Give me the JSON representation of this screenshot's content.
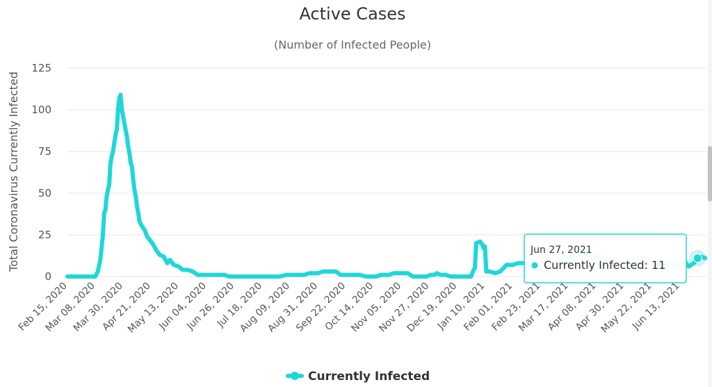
{
  "chart_data": {
    "type": "line",
    "title": "Active Cases",
    "subtitle": "(Number of Infected People)",
    "ylabel": "Total Coronavirus Currently Infected",
    "xlabel": "",
    "ylim": [
      0,
      125
    ],
    "yticks": [
      "0",
      "25",
      "50",
      "75",
      "100",
      "125"
    ],
    "grid": true,
    "legend_position": "bottom",
    "colors": {
      "series": "#1fd7d7",
      "grid": "#e6e6e6",
      "tooltip_border": "#1fd7d7"
    },
    "x_start": "2020-02-15",
    "x_end": "2021-07-04",
    "x_tick_labels": [
      "Feb 15, 2020",
      "Mar 08, 2020",
      "Mar 30, 2020",
      "Apr 21, 2020",
      "May 13, 2020",
      "Jun 04, 2020",
      "Jun 26, 2020",
      "Jul 18, 2020",
      "Aug 09, 2020",
      "Aug 31, 2020",
      "Sep 22, 2020",
      "Oct 14, 2020",
      "Nov 05, 2020",
      "Nov 27, 2020",
      "Dec 19, 2020",
      "Jan 10, 2021",
      "Feb 01, 2021",
      "Feb 23, 2021",
      "Mar 17, 2021",
      "Apr 08, 2021",
      "Apr 30, 2021",
      "May 22, 2021",
      "Jun 13, 2021"
    ],
    "series": [
      {
        "name": "Currently Infected",
        "points": [
          [
            "2020-02-15",
            0
          ],
          [
            "2020-03-08",
            0
          ],
          [
            "2020-03-10",
            3
          ],
          [
            "2020-03-12",
            10
          ],
          [
            "2020-03-14",
            25
          ],
          [
            "2020-03-15",
            38
          ],
          [
            "2020-03-16",
            40
          ],
          [
            "2020-03-17",
            48
          ],
          [
            "2020-03-18",
            52
          ],
          [
            "2020-03-19",
            55
          ],
          [
            "2020-03-20",
            68
          ],
          [
            "2020-03-21",
            72
          ],
          [
            "2020-03-22",
            75
          ],
          [
            "2020-03-23",
            80
          ],
          [
            "2020-03-24",
            85
          ],
          [
            "2020-03-25",
            88
          ],
          [
            "2020-03-26",
            100
          ],
          [
            "2020-03-27",
            107
          ],
          [
            "2020-03-28",
            109
          ],
          [
            "2020-03-29",
            100
          ],
          [
            "2020-03-30",
            96
          ],
          [
            "2020-03-31",
            92
          ],
          [
            "2020-04-01",
            88
          ],
          [
            "2020-04-02",
            84
          ],
          [
            "2020-04-03",
            78
          ],
          [
            "2020-04-04",
            74
          ],
          [
            "2020-04-05",
            68
          ],
          [
            "2020-04-06",
            66
          ],
          [
            "2020-04-07",
            58
          ],
          [
            "2020-04-08",
            52
          ],
          [
            "2020-04-09",
            48
          ],
          [
            "2020-04-10",
            42
          ],
          [
            "2020-04-11",
            38
          ],
          [
            "2020-04-12",
            33
          ],
          [
            "2020-04-14",
            30
          ],
          [
            "2020-04-16",
            28
          ],
          [
            "2020-04-18",
            24
          ],
          [
            "2020-04-21",
            21
          ],
          [
            "2020-04-23",
            19
          ],
          [
            "2020-04-25",
            16
          ],
          [
            "2020-04-28",
            13
          ],
          [
            "2020-05-01",
            12
          ],
          [
            "2020-05-04",
            8
          ],
          [
            "2020-05-06",
            10
          ],
          [
            "2020-05-09",
            7
          ],
          [
            "2020-05-13",
            6
          ],
          [
            "2020-05-16",
            4
          ],
          [
            "2020-05-20",
            4
          ],
          [
            "2020-05-24",
            3
          ],
          [
            "2020-05-28",
            1
          ],
          [
            "2020-06-04",
            1
          ],
          [
            "2020-06-18",
            1
          ],
          [
            "2020-06-22",
            0
          ],
          [
            "2020-08-01",
            0
          ],
          [
            "2020-08-06",
            1
          ],
          [
            "2020-08-20",
            1
          ],
          [
            "2020-08-24",
            2
          ],
          [
            "2020-08-31",
            2
          ],
          [
            "2020-09-04",
            3
          ],
          [
            "2020-09-14",
            3
          ],
          [
            "2020-09-18",
            1
          ],
          [
            "2020-10-03",
            1
          ],
          [
            "2020-10-08",
            0
          ],
          [
            "2020-10-16",
            0
          ],
          [
            "2020-10-20",
            1
          ],
          [
            "2020-10-26",
            1
          ],
          [
            "2020-10-30",
            2
          ],
          [
            "2020-11-10",
            2
          ],
          [
            "2020-11-14",
            0
          ],
          [
            "2020-11-25",
            0
          ],
          [
            "2020-11-28",
            1
          ],
          [
            "2020-12-01",
            1
          ],
          [
            "2020-12-03",
            2
          ],
          [
            "2020-12-06",
            1
          ],
          [
            "2020-12-10",
            1
          ],
          [
            "2020-12-14",
            0
          ],
          [
            "2020-12-30",
            0
          ],
          [
            "2021-01-01",
            4
          ],
          [
            "2021-01-02",
            5
          ],
          [
            "2021-01-03",
            20
          ],
          [
            "2021-01-06",
            21
          ],
          [
            "2021-01-08",
            19
          ],
          [
            "2021-01-09",
            17
          ],
          [
            "2021-01-10",
            18
          ],
          [
            "2021-01-11",
            3
          ],
          [
            "2021-01-14",
            3
          ],
          [
            "2021-01-18",
            2
          ],
          [
            "2021-01-22",
            3
          ],
          [
            "2021-01-27",
            7
          ],
          [
            "2021-02-01",
            7
          ],
          [
            "2021-02-05",
            8
          ],
          [
            "2021-02-12",
            8
          ],
          [
            "2021-02-15",
            5
          ],
          [
            "2021-02-20",
            5
          ],
          [
            "2021-02-24",
            3
          ],
          [
            "2021-03-01",
            3
          ],
          [
            "2021-03-04",
            6
          ],
          [
            "2021-03-10",
            8
          ],
          [
            "2021-03-17",
            11
          ],
          [
            "2021-03-25",
            13
          ],
          [
            "2021-04-01",
            14
          ],
          [
            "2021-04-08",
            12
          ],
          [
            "2021-04-15",
            10
          ],
          [
            "2021-04-24",
            9
          ],
          [
            "2021-04-30",
            8
          ],
          [
            "2021-05-08",
            6
          ],
          [
            "2021-05-16",
            7
          ],
          [
            "2021-05-22",
            8
          ],
          [
            "2021-05-30",
            7
          ],
          [
            "2021-06-06",
            8
          ],
          [
            "2021-06-13",
            7
          ],
          [
            "2021-06-17",
            9
          ],
          [
            "2021-06-20",
            6
          ],
          [
            "2021-06-24",
            8
          ],
          [
            "2021-06-27",
            11
          ],
          [
            "2021-06-30",
            12
          ],
          [
            "2021-07-03",
            11
          ]
        ]
      }
    ],
    "tooltip": {
      "date": "Jun 27, 2021",
      "label": "Currently Infected: 11",
      "x": "2021-06-27",
      "y": 11
    },
    "legend": {
      "label": "Currently Infected"
    }
  }
}
